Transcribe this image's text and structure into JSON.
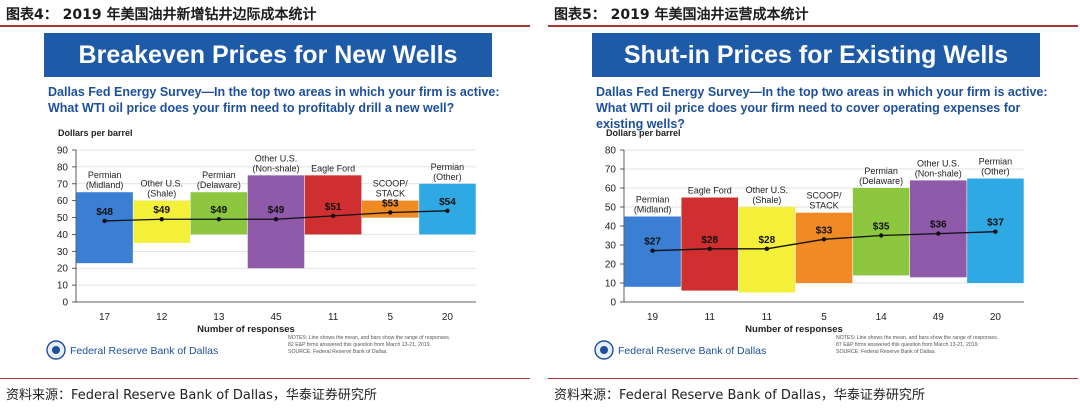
{
  "left": {
    "header": "图表4：  2019 年美国油井新增钻井边际成本统计",
    "banner": "Breakeven Prices for New Wells",
    "subtitle": "Dallas Fed Energy Survey—In the top two areas in which your firm is active: What WTI oil price does your firm need to profitably drill a new well?",
    "logo_text": "Federal Reserve Bank of Dallas",
    "notes": [
      "NOTES: Line shows the mean, and bars show the range of responses.",
      "82 E&P firms answered this question from March 13-21, 2019.",
      "SOURCE: Federal Reserve Bank of Dallas."
    ],
    "source": "资料来源：Federal Reserve Bank of Dallas，华泰证券研究所",
    "chart_data": {
      "type": "bar",
      "ylabel": "Dollars per barrel",
      "xlabel": "Number of responses",
      "ylim": [
        0,
        90
      ],
      "yticks": [
        "0",
        "10",
        "20",
        "30",
        "40",
        "50",
        "60",
        "70",
        "80",
        "90"
      ],
      "categories": [
        "Permian\n(Midland)",
        "Other U.S.\n(Shale)",
        "Permian\n(Delaware)",
        "Other U.S.\n(Non-shale)",
        "Eagle Ford",
        "SCOOP/\nSTACK",
        "Permian\n(Other)"
      ],
      "responses": [
        "17",
        "12",
        "13",
        "45",
        "11",
        "5",
        "20"
      ],
      "ranges": [
        [
          23,
          65
        ],
        [
          35,
          60
        ],
        [
          40,
          65
        ],
        [
          20,
          75
        ],
        [
          40,
          75
        ],
        [
          50,
          60
        ],
        [
          40,
          70
        ]
      ],
      "mean": [
        48,
        49,
        49,
        49,
        51,
        53,
        54
      ],
      "mean_labels": [
        "$48",
        "$49",
        "$49",
        "$49",
        "$51",
        "$53",
        "$54"
      ],
      "colors": [
        "#3a7fd4",
        "#f4f03a",
        "#8dc63f",
        "#8e5aa9",
        "#cf2f2f",
        "#f08a24",
        "#2fa9e3"
      ]
    }
  },
  "right": {
    "header": "图表5：  2019 年美国油井运营成本统计",
    "banner": "Shut-in Prices for Existing Wells",
    "subtitle": "Dallas Fed Energy Survey—In the top two areas in which your firm is active: What WTI oil price does your firm need to cover operating expenses for existing wells?",
    "logo_text": "Federal Reserve Bank of Dallas",
    "notes": [
      "NOTES: Line shows the mean, and bars show the range of responses.",
      "87 E&P firms answered this question from March 13-21, 2019.",
      "SOURCE: Federal Reserve Bank of Dallas."
    ],
    "source": "资料来源：Federal Reserve Bank of Dallas，华泰证券研究所",
    "chart_data": {
      "type": "bar",
      "ylabel": "Dollars per barrel",
      "xlabel": "Number of responses",
      "ylim": [
        0,
        80
      ],
      "yticks": [
        "0",
        "10",
        "20",
        "30",
        "40",
        "50",
        "60",
        "70",
        "80"
      ],
      "categories": [
        "Permian\n(Midland)",
        "Eagle Ford",
        "Other U.S.\n(Shale)",
        "SCOOP/\nSTACK",
        "Permian\n(Delaware)",
        "Other U.S.\n(Non-shale)",
        "Permian\n(Other)"
      ],
      "responses": [
        "19",
        "11",
        "11",
        "5",
        "14",
        "49",
        "20"
      ],
      "ranges": [
        [
          8,
          45
        ],
        [
          6,
          55
        ],
        [
          5,
          50
        ],
        [
          10,
          47
        ],
        [
          14,
          60
        ],
        [
          13,
          64
        ],
        [
          10,
          65
        ]
      ],
      "mean": [
        27,
        28,
        28,
        33,
        35,
        36,
        37
      ],
      "mean_labels": [
        "$27",
        "$28",
        "$28",
        "$33",
        "$35",
        "$36",
        "$37"
      ],
      "colors": [
        "#3a7fd4",
        "#cf2f2f",
        "#f4f03a",
        "#f08a24",
        "#8dc63f",
        "#8e5aa9",
        "#2fa9e3"
      ]
    }
  }
}
